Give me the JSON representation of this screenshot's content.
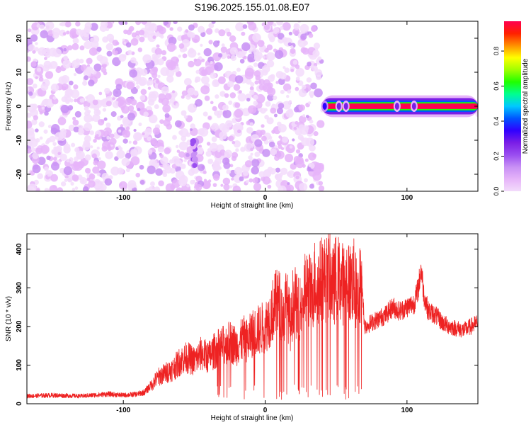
{
  "title": "S196.2025.155.01.08.E07",
  "chart_data": [
    {
      "type": "heatmap",
      "xlabel": "Height of straight line (km)",
      "ylabel": "Frequency (Hz)",
      "xlim": [
        -168,
        150
      ],
      "ylim": [
        -25,
        25
      ],
      "xticks": [
        -100,
        0,
        100
      ],
      "xtick_labels": [
        "-100",
        "0",
        "100"
      ],
      "yticks": [
        -20,
        -10,
        0,
        10,
        20
      ],
      "ytick_labels": [
        "-20",
        "-10",
        "0",
        "10",
        "20"
      ],
      "grid": false,
      "noise_region_x": [
        -168,
        40
      ],
      "signal_band": {
        "x_start": 40,
        "x_end": 150,
        "frequency_hz": 0,
        "amplitude": 0.95
      },
      "bright_streak": {
        "x": -50,
        "frequency_range_hz": [
          -18,
          -10
        ],
        "amplitude": 0.25
      },
      "blobs_along_band": [
        {
          "x": 42,
          "amplitude": 0.35
        },
        {
          "x": 52,
          "amplitude": 0.3
        },
        {
          "x": 57,
          "amplitude": 0.3
        },
        {
          "x": 93,
          "amplitude": 0.3
        },
        {
          "x": 105,
          "amplitude": 0.3
        }
      ],
      "colorbar": {
        "label": "Normalized spectral amplitude",
        "range": [
          0,
          0.97
        ],
        "ticks": [
          0,
          0.2,
          0.4,
          0.6,
          0.8
        ],
        "tick_labels": [
          "0.0",
          "0.2",
          "0.4",
          "0.6",
          "0.8"
        ],
        "colors": [
          "#f3dcfb",
          "#e6b4f9",
          "#c890f5",
          "#9a4df0",
          "#7a1ee6",
          "#3000ff",
          "#0055ff",
          "#00c8ff",
          "#00ff90",
          "#20ff00",
          "#a0ff00",
          "#ffff00",
          "#ff9000",
          "#ff2000",
          "#ff0050"
        ]
      }
    },
    {
      "type": "line",
      "xlabel": "Height of straight line (km)",
      "ylabel": "SNR (10 * v/v)",
      "xlim": [
        -168,
        150
      ],
      "ylim": [
        0,
        440
      ],
      "xticks": [
        -100,
        0,
        100
      ],
      "xtick_labels": [
        "-100",
        "0",
        "100"
      ],
      "yticks": [
        0,
        100,
        200,
        300,
        400
      ],
      "ytick_labels": [
        "0",
        "100",
        "200",
        "300",
        "400"
      ],
      "grid": false,
      "color": "#ee2222",
      "series": [
        {
          "x": [
            -168,
            -150,
            -130,
            -110,
            -100,
            -90,
            -85,
            -80,
            -75,
            -70,
            -65,
            -60,
            -55,
            -50,
            -45,
            -40,
            -35,
            -30,
            -25,
            -20,
            -15,
            -12,
            -10,
            -5,
            0,
            3,
            5,
            8,
            10,
            13,
            15,
            18,
            20,
            23,
            25,
            28,
            30,
            33,
            35,
            38,
            40,
            43,
            45,
            48,
            50,
            53,
            55,
            58,
            60,
            63,
            65,
            68,
            70,
            75,
            80,
            85,
            90,
            95,
            100,
            105,
            108,
            110,
            112,
            115,
            120,
            125,
            130,
            135,
            140,
            145,
            150
          ],
          "y": [
            20,
            22,
            20,
            25,
            22,
            25,
            30,
            50,
            70,
            80,
            90,
            110,
            120,
            110,
            130,
            120,
            140,
            150,
            160,
            150,
            170,
            160,
            180,
            190,
            200,
            220,
            240,
            260,
            260,
            220,
            270,
            200,
            280,
            240,
            250,
            290,
            300,
            280,
            320,
            310,
            330,
            320,
            340,
            300,
            330,
            320,
            310,
            330,
            310,
            320,
            260,
            340,
            200,
            210,
            220,
            230,
            250,
            240,
            250,
            260,
            300,
            350,
            280,
            240,
            230,
            210,
            200,
            195,
            190,
            200,
            210
          ]
        }
      ]
    }
  ]
}
